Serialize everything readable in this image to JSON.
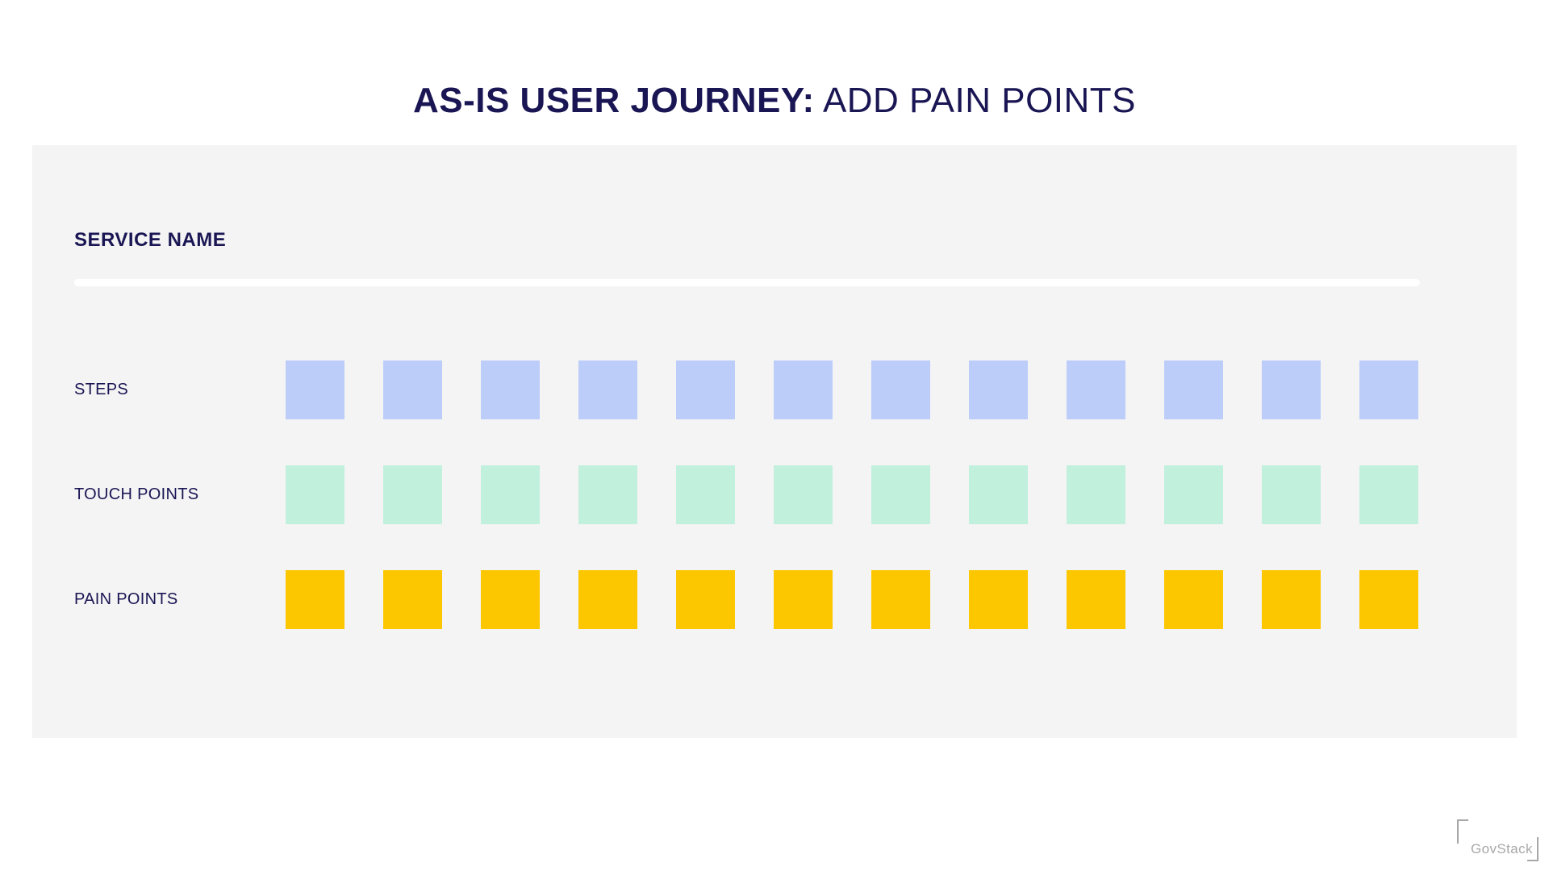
{
  "title": {
    "bold_part": "AS-IS USER JOURNEY:",
    "regular_part": " ADD PAIN POINTS"
  },
  "panel": {
    "service_name_label": "SERVICE NAME"
  },
  "rows": [
    {
      "id": "steps",
      "label": "STEPS",
      "color": "#BDCDFA",
      "cell_count": 12
    },
    {
      "id": "touch-points",
      "label": "TOUCH POINTS",
      "color": "#C1F0DD",
      "cell_count": 12
    },
    {
      "id": "pain-points",
      "label": "PAIN POINTS",
      "color": "#FDC700",
      "cell_count": 12
    }
  ],
  "logo": {
    "text": "GovStack"
  },
  "colors": {
    "title_navy": "#1A1654",
    "panel_background": "#F4F4F4",
    "divider_white": "#FFFFFF",
    "steps_blue": "#BDCDFA",
    "touch_points_green": "#C1F0DD",
    "pain_points_yellow": "#FDC700",
    "logo_gray": "#A8A8A8"
  }
}
